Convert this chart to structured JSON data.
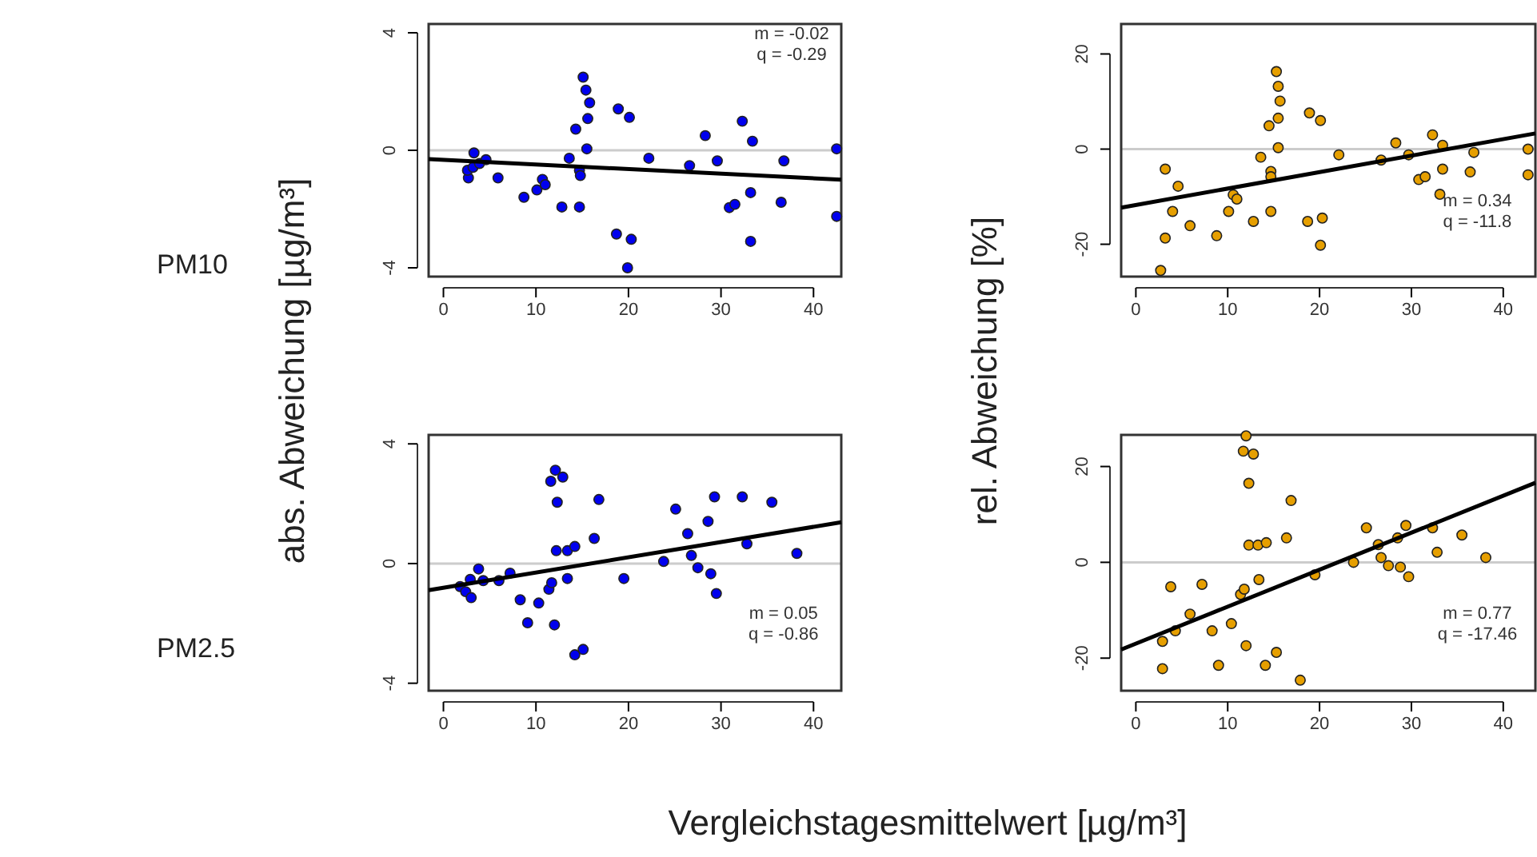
{
  "chart_data": [
    {
      "type": "scatter",
      "ylabel": "abs. Abweichung [µg/m³]",
      "annotations": [
        "PM10",
        "m = -0.02",
        "q = -0.29"
      ],
      "xlim": [
        -1.6,
        43
      ],
      "ylim": [
        -4.3,
        4.3
      ],
      "xticks": [
        0,
        10,
        20,
        30,
        40
      ],
      "yticks": [
        -4,
        0,
        4
      ],
      "grid": false,
      "ref_lines": [
        {
          "axis": "y",
          "value": 0,
          "color": "#cccccc"
        }
      ],
      "series": [
        {
          "color": "#0000ee",
          "marker": "circle",
          "x": [
            2.7,
            2.6,
            3.3,
            3.2,
            3.9,
            4.6,
            5.9,
            8.7,
            10.1,
            10.7,
            11.0,
            12.8,
            13.6,
            14.3,
            14.7,
            14.7,
            14.8,
            15.1,
            15.4,
            15.8,
            15.6,
            15.5,
            18.9,
            20.1,
            18.7,
            20.3,
            19.9,
            22.2,
            26.6,
            28.3,
            29.6,
            30.9,
            31.5,
            32.3,
            33.2,
            33.4,
            33.2,
            36.5,
            36.8,
            42.5,
            42.5
          ],
          "values": [
            -0.94,
            -0.68,
            -0.09,
            -0.58,
            -0.45,
            -0.32,
            -0.94,
            -1.6,
            -1.35,
            -0.99,
            -1.17,
            -1.93,
            -0.27,
            0.72,
            -1.93,
            -0.68,
            -0.86,
            2.49,
            2.05,
            1.62,
            1.08,
            0.05,
            1.41,
            1.12,
            -2.85,
            -3.03,
            -4.0,
            -0.27,
            -0.52,
            0.5,
            -0.36,
            -1.95,
            -1.84,
            0.99,
            -1.44,
            0.31,
            -3.1,
            -1.77,
            -0.36,
            0.05,
            -2.25
          ]
        },
        {
          "type": "line",
          "color": "#000000",
          "x": [
            -1.6,
            43
          ],
          "values": [
            -0.3,
            -1.0
          ]
        }
      ]
    },
    {
      "type": "scatter",
      "ylabel": "rel. Abweichung [%]",
      "annotations": [
        "m = 0.34",
        "q = -11.8"
      ],
      "xlim": [
        -1.6,
        43.5
      ],
      "ylim": [
        -26.8,
        26.3
      ],
      "xticks": [
        0,
        10,
        20,
        30,
        40
      ],
      "yticks": [
        -20,
        0,
        20
      ],
      "grid": false,
      "ref_lines": [
        {
          "axis": "y",
          "value": 0,
          "color": "#cccccc"
        }
      ],
      "series": [
        {
          "color": "#e69f00",
          "marker": "circle",
          "x": [
            2.7,
            3.2,
            3.2,
            4.0,
            4.6,
            5.9,
            8.8,
            10.1,
            10.6,
            11.0,
            12.8,
            13.6,
            14.5,
            14.7,
            14.7,
            14.7,
            15.3,
            15.5,
            15.7,
            15.5,
            15.5,
            18.9,
            20.1,
            18.7,
            20.3,
            20.1,
            22.1,
            26.7,
            28.3,
            29.7,
            30.8,
            31.5,
            32.3,
            33.1,
            33.4,
            33.4,
            36.4,
            36.8,
            42.7,
            42.7
          ],
          "values": [
            -25.5,
            -18.7,
            -4.2,
            -13.1,
            -7.8,
            -16.1,
            -18.2,
            -13.1,
            -9.6,
            -10.5,
            -15.2,
            -1.7,
            4.9,
            -4.7,
            -5.8,
            -13.1,
            16.3,
            13.2,
            10.1,
            6.5,
            0.3,
            7.6,
            6.0,
            -15.2,
            -14.5,
            -20.2,
            -1.2,
            -2.3,
            1.3,
            -1.2,
            -6.4,
            -5.8,
            3.0,
            -9.5,
            0.8,
            -4.2,
            -4.8,
            -0.7,
            0,
            -5.4
          ]
        },
        {
          "type": "line",
          "color": "#000000",
          "x": [
            -1.6,
            43.5
          ],
          "values": [
            -12.3,
            3.3
          ]
        }
      ]
    },
    {
      "type": "scatter",
      "annotations": [
        "PM2.5",
        "m = 0.05",
        "q = -0.86"
      ],
      "xlim": [
        -1.6,
        43
      ],
      "ylim": [
        -4.25,
        4.3
      ],
      "xticks": [
        0,
        10,
        20,
        30,
        40
      ],
      "yticks": [
        -4,
        0,
        4
      ],
      "grid": false,
      "ref_lines": [
        {
          "axis": "y",
          "value": 0,
          "color": "#cccccc"
        }
      ],
      "series": [
        {
          "color": "#0000ee",
          "marker": "circle",
          "x": [
            1.8,
            2.4,
            3.0,
            2.9,
            3.8,
            4.3,
            6.0,
            7.2,
            8.3,
            9.1,
            10.3,
            11.4,
            11.7,
            12.0,
            11.6,
            12.1,
            12.9,
            12.3,
            12.2,
            13.4,
            14.2,
            13.4,
            14.2,
            15.1,
            16.3,
            16.8,
            19.5,
            23.8,
            25.1,
            26.4,
            26.8,
            27.5,
            28.6,
            28.9,
            29.5,
            29.3,
            32.3,
            32.8,
            35.5,
            38.2
          ],
          "values": [
            -0.77,
            -0.94,
            -1.14,
            -0.53,
            -0.18,
            -0.57,
            -0.57,
            -0.32,
            -1.21,
            -1.98,
            -1.32,
            -0.86,
            -0.64,
            -2.05,
            2.75,
            3.12,
            2.89,
            2.05,
            0.43,
            0.43,
            0.57,
            -0.5,
            -3.05,
            -2.87,
            0.84,
            2.14,
            -0.5,
            0.07,
            1.82,
            1.0,
            0.27,
            -0.14,
            1.41,
            -0.34,
            -1.0,
            2.23,
            2.23,
            0.66,
            2.05,
            0.34
          ]
        },
        {
          "type": "line",
          "color": "#000000",
          "x": [
            -1.6,
            43
          ],
          "values": [
            -0.89,
            1.38
          ]
        }
      ]
    },
    {
      "type": "scatter",
      "xlabel": "Vergleichstagesmittelwert [µg/m³]",
      "annotations": [
        "m = 0.77",
        "q = -17.46"
      ],
      "xlim": [
        -1.6,
        43.5
      ],
      "ylim": [
        -26.8,
        26.6
      ],
      "xticks": [
        0,
        10,
        20,
        30,
        40
      ],
      "yticks": [
        -20,
        0,
        20
      ],
      "grid": false,
      "ref_lines": [
        {
          "axis": "y",
          "value": 0,
          "color": "#cccccc"
        }
      ],
      "series": [
        {
          "color": "#e69f00",
          "marker": "circle",
          "x": [
            2.9,
            2.9,
            3.8,
            4.3,
            5.9,
            7.2,
            8.3,
            9.0,
            10.4,
            11.4,
            11.8,
            12.0,
            12.0,
            11.7,
            12.8,
            12.3,
            12.3,
            13.3,
            14.2,
            13.4,
            14.1,
            15.3,
            16.4,
            16.9,
            17.9,
            19.5,
            23.7,
            25.1,
            26.4,
            26.7,
            27.5,
            28.5,
            28.8,
            29.4,
            29.7,
            32.3,
            32.8,
            35.5,
            38.1
          ],
          "values": [
            -22.2,
            -16.5,
            -5.1,
            -14.3,
            -10.8,
            -4.6,
            -14.3,
            -21.5,
            -12.8,
            -6.7,
            -5.6,
            -17.4,
            26.4,
            23.2,
            22.6,
            16.5,
            3.6,
            3.6,
            4.1,
            -3.6,
            -21.5,
            -18.8,
            5.1,
            12.9,
            -24.6,
            -2.6,
            0,
            7.2,
            3.7,
            1.0,
            -0.7,
            5.1,
            -1.0,
            7.7,
            -3.0,
            7.2,
            2.1,
            5.7,
            1.0
          ]
        },
        {
          "type": "line",
          "color": "#000000",
          "x": [
            -1.6,
            43.5
          ],
          "values": [
            -18.2,
            16.6
          ]
        }
      ]
    }
  ]
}
